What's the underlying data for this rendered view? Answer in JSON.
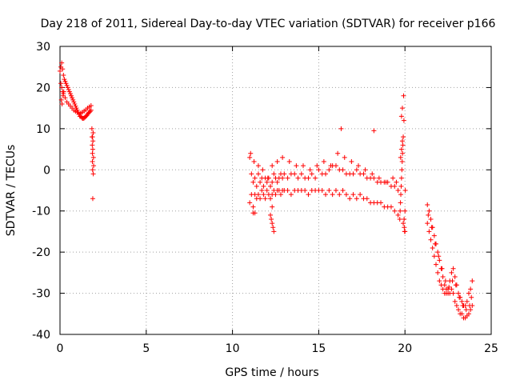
{
  "chart_data": {
    "type": "scatter",
    "title": "Day 218 of 2011, Sidereal Day-to-day VTEC variation (SDTVAR) for receiver p166",
    "xlabel": "GPS time / hours",
    "ylabel": "SDTVAR / TECUs",
    "xlim": [
      0,
      25
    ],
    "ylim": [
      -40,
      30
    ],
    "xticks": [
      0,
      5,
      10,
      15,
      20,
      25
    ],
    "yticks": [
      -40,
      -30,
      -20,
      -10,
      0,
      10,
      20,
      30
    ],
    "grid": true,
    "marker": "+",
    "series_color": "#ff0000",
    "series": [
      {
        "name": "SDTVAR",
        "x": [
          0.0,
          0.05,
          0.1,
          0.15,
          0.2,
          0.25,
          0.3,
          0.35,
          0.4,
          0.45,
          0.5,
          0.55,
          0.6,
          0.65,
          0.7,
          0.75,
          0.8,
          0.85,
          0.9,
          0.95,
          1.0,
          1.05,
          1.1,
          1.15,
          1.2,
          1.25,
          1.3,
          1.35,
          1.4,
          1.45,
          1.5,
          1.55,
          1.6,
          1.65,
          1.7,
          1.75,
          1.8,
          0.05,
          0.1,
          0.15,
          0.2,
          0.3,
          0.4,
          0.5,
          0.6,
          0.7,
          0.8,
          0.9,
          1.0,
          1.1,
          1.2,
          1.3,
          1.4,
          1.5,
          1.6,
          1.7,
          1.8,
          0.08,
          0.18,
          0.12,
          0.22,
          1.85,
          1.86,
          1.87,
          1.88,
          1.88,
          1.89,
          1.9,
          1.91,
          1.92,
          1.93,
          1.94,
          1.95,
          1.9,
          1.88,
          11.0,
          11.1,
          11.2,
          11.3,
          11.4,
          11.5,
          11.6,
          11.7,
          11.8,
          11.9,
          12.0,
          12.1,
          12.2,
          12.3,
          12.4,
          12.5,
          12.6,
          12.7,
          12.8,
          12.9,
          13.0,
          13.2,
          13.4,
          13.6,
          13.8,
          14.0,
          14.2,
          14.4,
          14.6,
          14.8,
          15.0,
          15.2,
          15.4,
          15.6,
          15.8,
          16.0,
          16.2,
          16.4,
          16.6,
          16.8,
          17.0,
          17.2,
          17.4,
          17.6,
          17.8,
          18.0,
          18.2,
          18.4,
          18.6,
          18.8,
          19.0,
          19.2,
          19.4,
          19.6,
          11.0,
          11.1,
          11.2,
          11.3,
          11.4,
          11.5,
          11.6,
          11.7,
          11.8,
          11.9,
          12.0,
          12.1,
          12.2,
          12.3,
          12.4,
          12.5,
          12.6,
          12.7,
          12.8,
          12.9,
          13.0,
          13.2,
          13.4,
          13.6,
          13.8,
          14.0,
          14.2,
          14.4,
          14.6,
          14.8,
          15.0,
          15.2,
          15.4,
          15.6,
          15.8,
          16.0,
          16.2,
          16.4,
          16.6,
          16.8,
          17.0,
          17.2,
          17.4,
          17.6,
          17.8,
          18.0,
          18.2,
          18.4,
          18.6,
          18.8,
          19.0,
          19.2,
          19.4,
          19.6,
          11.05,
          11.25,
          11.5,
          11.75,
          12.05,
          12.3,
          12.6,
          12.9,
          13.3,
          13.7,
          14.1,
          14.5,
          14.9,
          15.3,
          15.7,
          16.1,
          16.5,
          16.9,
          17.3,
          17.7,
          18.1,
          18.5,
          18.9,
          19.3,
          19.5,
          11.2,
          11.3,
          12.2,
          12.25,
          12.3,
          12.35,
          12.4,
          12.3,
          16.3,
          18.2,
          19.7,
          19.72,
          19.74,
          19.76,
          19.78,
          19.8,
          19.82,
          19.84,
          19.86,
          19.88,
          19.9,
          19.92,
          19.94,
          19.96,
          19.98,
          20.0,
          20.02,
          19.75,
          19.8,
          19.85,
          19.9,
          19.95,
          20.0,
          19.8,
          19.85,
          21.3,
          21.4,
          21.5,
          21.6,
          21.7,
          21.8,
          21.9,
          22.0,
          22.1,
          22.2,
          22.3,
          22.4,
          22.5,
          22.6,
          22.7,
          22.8,
          22.9,
          23.0,
          23.1,
          23.2,
          23.3,
          23.4,
          23.5,
          23.6,
          23.7,
          23.8,
          23.9,
          21.3,
          21.4,
          21.5,
          21.6,
          21.7,
          21.8,
          21.9,
          22.0,
          22.1,
          22.2,
          22.3,
          22.4,
          22.5,
          22.6,
          22.7,
          22.8,
          22.9,
          23.0,
          23.1,
          23.2,
          23.3,
          23.4,
          23.5,
          23.6,
          23.7,
          23.8,
          23.9,
          21.35,
          21.55,
          21.75,
          21.95,
          22.15,
          22.35,
          22.55,
          22.75,
          22.95,
          23.15,
          23.35,
          23.55,
          23.75,
          23.85
        ],
        "y": [
          24,
          25,
          26,
          24.5,
          23,
          22,
          21.5,
          21,
          20.5,
          20,
          19.5,
          19,
          18.5,
          18,
          17.5,
          17,
          16.5,
          16,
          15.5,
          15,
          14.5,
          14,
          13.5,
          13,
          13,
          12.8,
          12.5,
          12.5,
          12.6,
          12.8,
          13,
          13.2,
          13.5,
          13.8,
          14,
          14.2,
          14.5,
          21,
          20,
          19,
          18.5,
          17.5,
          16.5,
          16,
          15.5,
          15,
          14.5,
          14.2,
          14,
          13.6,
          13.8,
          14,
          14.3,
          14.6,
          15,
          15.3,
          15.6,
          17,
          18,
          16,
          19,
          10,
          8,
          6,
          4,
          2,
          0,
          5,
          7,
          9,
          -1,
          3,
          1,
          -7,
          8,
          3,
          -1,
          -3,
          -2,
          -4,
          -1,
          -3,
          -2,
          -4,
          -2,
          -3,
          -2,
          -4,
          -3,
          -1,
          -2,
          -3,
          -2,
          -1,
          -2,
          -1,
          -2,
          -1,
          -1,
          -2,
          -1,
          -2,
          -2,
          -1,
          -2,
          0,
          -1,
          -1,
          0,
          1,
          1,
          0,
          0,
          -1,
          -1,
          -1,
          0,
          -1,
          -1,
          -2,
          -2,
          -2,
          -3,
          -3,
          -3,
          -3,
          -4,
          -4,
          -5,
          -8,
          -6,
          -9,
          -6,
          -7,
          -6,
          -7,
          -5,
          -6,
          -7,
          -5,
          -6,
          -7,
          -6,
          -5,
          -6,
          -5,
          -5,
          -6,
          -5,
          -5,
          -5,
          -6,
          -5,
          -5,
          -5,
          -5,
          -6,
          -5,
          -5,
          -5,
          -5,
          -6,
          -5,
          -6,
          -5,
          -6,
          -5,
          -6,
          -7,
          -6,
          -7,
          -6,
          -7,
          -7,
          -8,
          -8,
          -8,
          -8,
          -9,
          -9,
          -9,
          -10,
          -11,
          4,
          2,
          1,
          0,
          -2,
          1,
          2,
          3,
          2,
          1,
          1,
          0,
          1,
          2,
          1,
          4,
          3,
          2,
          1,
          0,
          -1,
          -2,
          -3,
          -2,
          -3,
          -10.5,
          -10.5,
          -11,
          -12,
          -13,
          -14,
          -15,
          -9,
          10,
          9.5,
          -12,
          -10,
          -8,
          -6,
          -4,
          -2,
          0,
          2,
          4,
          6,
          8,
          18,
          12,
          -14,
          -15,
          -10,
          -5,
          3,
          5,
          7,
          -13,
          -12,
          -15,
          13,
          15,
          -8.5,
          -10,
          -12,
          -14,
          -16,
          -18,
          -20,
          -22,
          -24,
          -26,
          -28,
          -29,
          -29,
          -27,
          -25,
          -24,
          -26,
          -28,
          -30,
          -31,
          -32,
          -33,
          -33,
          -32,
          -30,
          -29,
          -27,
          -13,
          -15,
          -17,
          -19,
          -21,
          -23,
          -25,
          -27,
          -28,
          -29,
          -30,
          -30,
          -30,
          -30,
          -29,
          -30,
          -32,
          -33,
          -34,
          -35,
          -35,
          -36,
          -36,
          -35.5,
          -35,
          -34,
          -33,
          -11,
          -14,
          -18,
          -21,
          -24,
          -27,
          -28.5,
          -27,
          -28,
          -31,
          -33,
          -34,
          -33,
          -31
        ]
      }
    ]
  }
}
